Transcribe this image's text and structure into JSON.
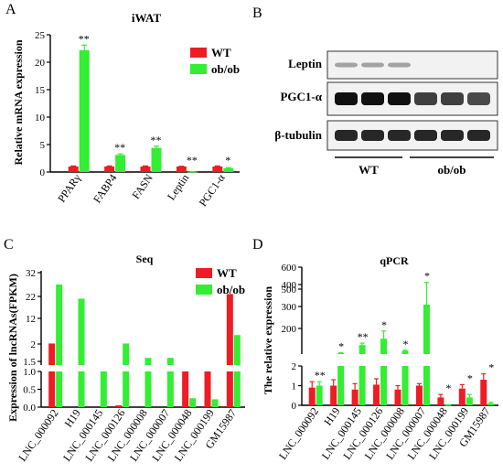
{
  "colors": {
    "wt": "#ee1c24",
    "obob": "#33ee33",
    "axis": "#000000"
  },
  "chart_data": [
    {
      "panel": "A",
      "type": "bar",
      "title": "iWAT",
      "ylabel": "Relative mRNA expression",
      "xlabel": "",
      "categories": [
        "PPARγ",
        "FABP4",
        "FASN",
        "Leptin",
        "PGC1-α"
      ],
      "ylim": [
        0,
        25
      ],
      "yticks": [
        0,
        5,
        10,
        15,
        20,
        25
      ],
      "series": [
        {
          "name": "WT",
          "color": "#ee1c24",
          "values": [
            1.0,
            1.0,
            1.0,
            1.0,
            1.0
          ],
          "errors": [
            0.1,
            0.1,
            0.1,
            0.05,
            0.1
          ]
        },
        {
          "name": "ob/ob",
          "color": "#33ee33",
          "values": [
            22.2,
            3.1,
            4.4,
            0.05,
            0.7
          ],
          "errors": [
            0.9,
            0.2,
            0.3,
            0.01,
            0.1
          ]
        }
      ],
      "significance": [
        "**",
        "**",
        "**",
        "**",
        "*"
      ],
      "legend": "top-right"
    },
    {
      "panel": "B",
      "type": "blot",
      "rows": [
        "Leptin",
        "PGC1-α",
        "β-tubulin"
      ],
      "groups": [
        "WT",
        "ob/ob"
      ]
    },
    {
      "panel": "C",
      "type": "bar",
      "title": "Seq",
      "ylabel": "Expression of lncRNAs(FPKM)",
      "xlabel": "",
      "categories": [
        "LNC_000092",
        "H19",
        "LNC_000145",
        "LNC_000126",
        "LNC_000008",
        "LNC_000007",
        "LNC_000048",
        "LNC_000199",
        "GM15987"
      ],
      "axis_break": true,
      "lower_ylim": [
        0,
        1.0
      ],
      "lower_yticks": [
        "0.0",
        "0.5",
        "1.0"
      ],
      "upper_yticks": [
        "1.5",
        "2",
        "12",
        "22",
        "32"
      ],
      "series": [
        {
          "name": "WT",
          "color": "#ee1c24",
          "values": [
            2.2,
            0,
            0,
            0.05,
            0,
            0,
            1.0,
            1.0,
            23
          ]
        },
        {
          "name": "ob/ob",
          "color": "#33ee33",
          "values": [
            27,
            21,
            1.0,
            2.2,
            1.6,
            1.6,
            0.25,
            0.22,
            5.5
          ]
        }
      ],
      "legend": "top-right"
    },
    {
      "panel": "D",
      "type": "bar",
      "title": "qPCR",
      "ylabel": "The relative expression",
      "xlabel": "",
      "categories": [
        "LNC_000092",
        "H19",
        "LNC_000145",
        "LNC_000126",
        "LNC_000008",
        "LNC_000007",
        "LNC_000048",
        "LNC_000199",
        "GM15987"
      ],
      "axis_break": true,
      "lower_ylim": [
        0,
        2
      ],
      "lower_yticks": [
        "0",
        "1",
        "2"
      ],
      "upper_yticks": [
        "200",
        "300",
        "400",
        "500",
        "600"
      ],
      "series": [
        {
          "name": "WT",
          "color": "#ee1c24",
          "values": [
            0.9,
            1.0,
            0.8,
            1.05,
            0.8,
            1.0,
            0.4,
            0.85,
            1.3
          ],
          "errors": [
            0.3,
            0.3,
            0.3,
            0.3,
            0.2,
            0.1,
            0.15,
            0.2,
            0.3
          ]
        },
        {
          "name": "ob/ob",
          "color": "#33ee33",
          "values": [
            1.0,
            8,
            70,
            120,
            25,
            360,
            0.02,
            0.4,
            0.1
          ],
          "errors": [
            0.2,
            2,
            15,
            60,
            5,
            150,
            0.01,
            0.15,
            0.05
          ]
        }
      ],
      "significance": [
        "**",
        "*",
        "**",
        "*",
        "*",
        "*",
        "*",
        "*",
        "*"
      ]
    }
  ]
}
